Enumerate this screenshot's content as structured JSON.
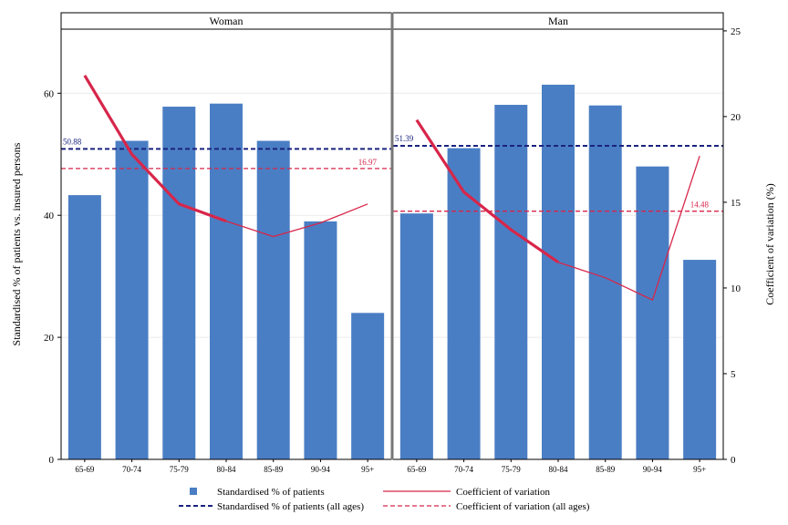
{
  "chart_data": {
    "type": "bar",
    "panels": [
      {
        "title": "Woman",
        "categories": [
          "65-69",
          "70-74",
          "75-79",
          "80-84",
          "85-89",
          "90-94",
          "95+"
        ],
        "bar_values": [
          43.3,
          52.2,
          57.8,
          58.3,
          52.2,
          39.0,
          24.0
        ],
        "cv_values": [
          22.4,
          17.8,
          14.9,
          13.9,
          13.0,
          13.8,
          14.9
        ],
        "cv_bold_until_index": 3,
        "ref_pct_all_ages": 50.88,
        "ref_pct_label": "50.88",
        "ref_cv_all_ages": 16.97,
        "ref_cv_label": "16.97"
      },
      {
        "title": "Man",
        "categories": [
          "65-69",
          "70-74",
          "75-79",
          "80-84",
          "85-89",
          "90-94",
          "95+"
        ],
        "bar_values": [
          40.3,
          51.0,
          58.1,
          61.4,
          58.0,
          48.0,
          32.7
        ],
        "cv_values": [
          19.8,
          15.6,
          13.4,
          11.5,
          10.6,
          9.3,
          17.7
        ],
        "cv_bold_until_index": 3,
        "ref_pct_all_ages": 51.39,
        "ref_pct_label": "51.39",
        "ref_cv_all_ages": 14.48,
        "ref_cv_label": "14.48"
      }
    ],
    "ylabel_left": "Standardised % of patients vs. insured persons",
    "ylabel_right": "Coefficient of variation (%)",
    "ylim_left": [
      0,
      70.5
    ],
    "yticks_left": [
      0,
      20,
      40,
      60
    ],
    "ylim_right": [
      0,
      25.1
    ],
    "yticks_right": [
      0,
      5,
      10,
      15,
      20,
      25
    ],
    "grid": true,
    "legend": {
      "placement": "bottom",
      "entries": [
        {
          "label": "Standardised % of patients",
          "style": "bar",
          "color": "#4a7ec4"
        },
        {
          "label": "Coefficient of variation",
          "style": "line",
          "color": "#d7264a"
        },
        {
          "label": "Standardised % of patients (all ages)",
          "style": "dashed",
          "color": "#1a237e"
        },
        {
          "label": "Coefficient of variation (all ages)",
          "style": "dashed",
          "color": "#d7264a"
        }
      ]
    },
    "colors": {
      "bar": "#4a7ec4",
      "cv_line": "#d7264a",
      "ref_pct": "#1a237e",
      "ref_cv": "#d7264a",
      "grid": "#ececec"
    }
  }
}
